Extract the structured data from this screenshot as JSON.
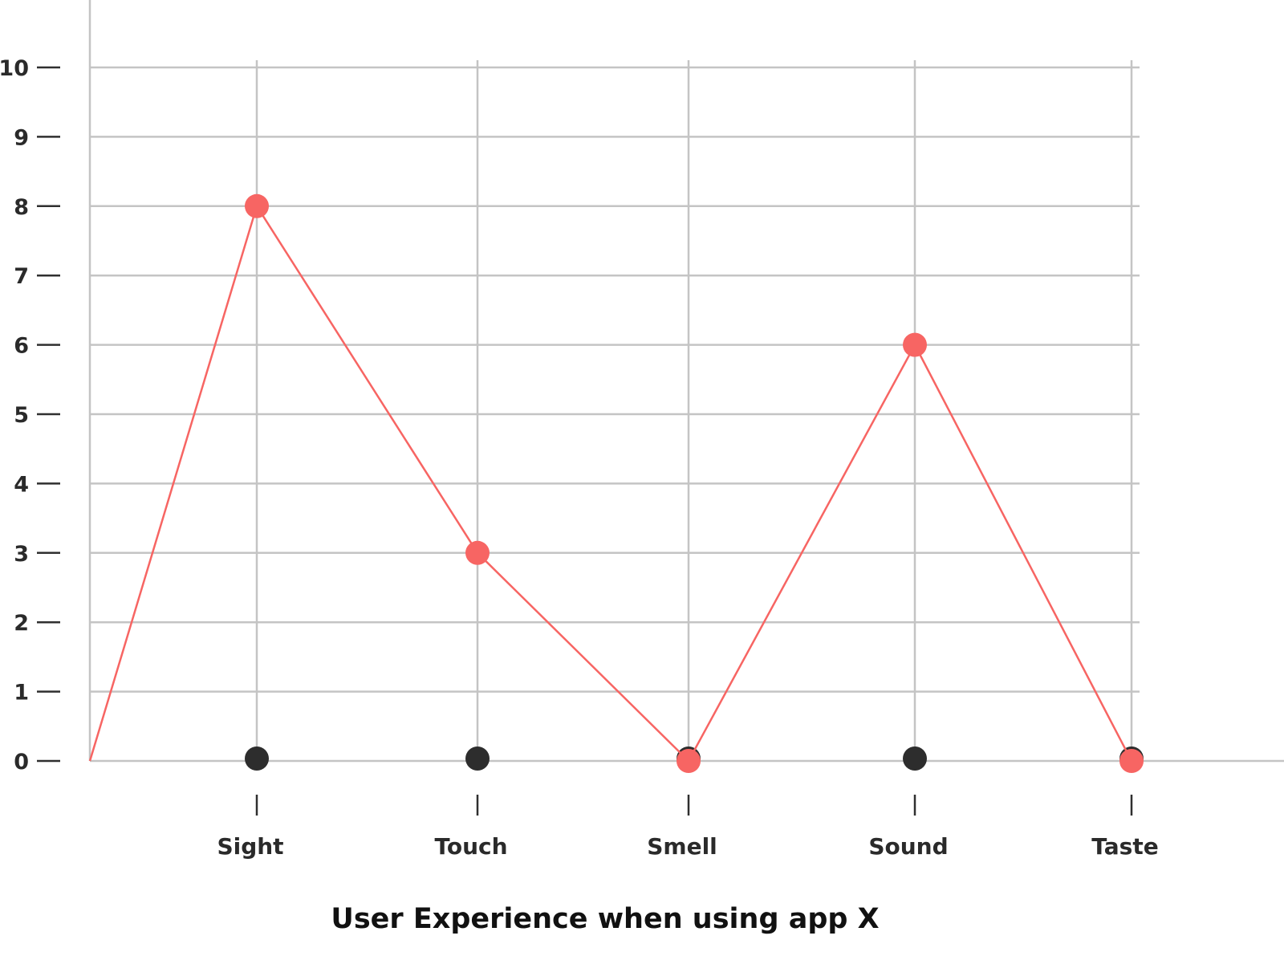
{
  "chart_data": {
    "type": "line",
    "title": "User Experience when using app X",
    "xlabel": "",
    "ylabel": "",
    "categories": [
      "Sight",
      "Touch",
      "Smell",
      "Sound",
      "Taste"
    ],
    "ylim": [
      0,
      10
    ],
    "yticks": [
      "0",
      "1",
      "2",
      "3",
      "4",
      "5",
      "6",
      "7",
      "8",
      "9",
      "10"
    ],
    "grid": true,
    "series": [
      {
        "values": [
          0,
          0,
          0,
          0,
          0
        ],
        "color": "#2d2d2d",
        "line": false
      },
      {
        "values": [
          8,
          3,
          0,
          6,
          0
        ],
        "color": "#f76563",
        "line": true,
        "starts_at_origin": true
      }
    ]
  }
}
